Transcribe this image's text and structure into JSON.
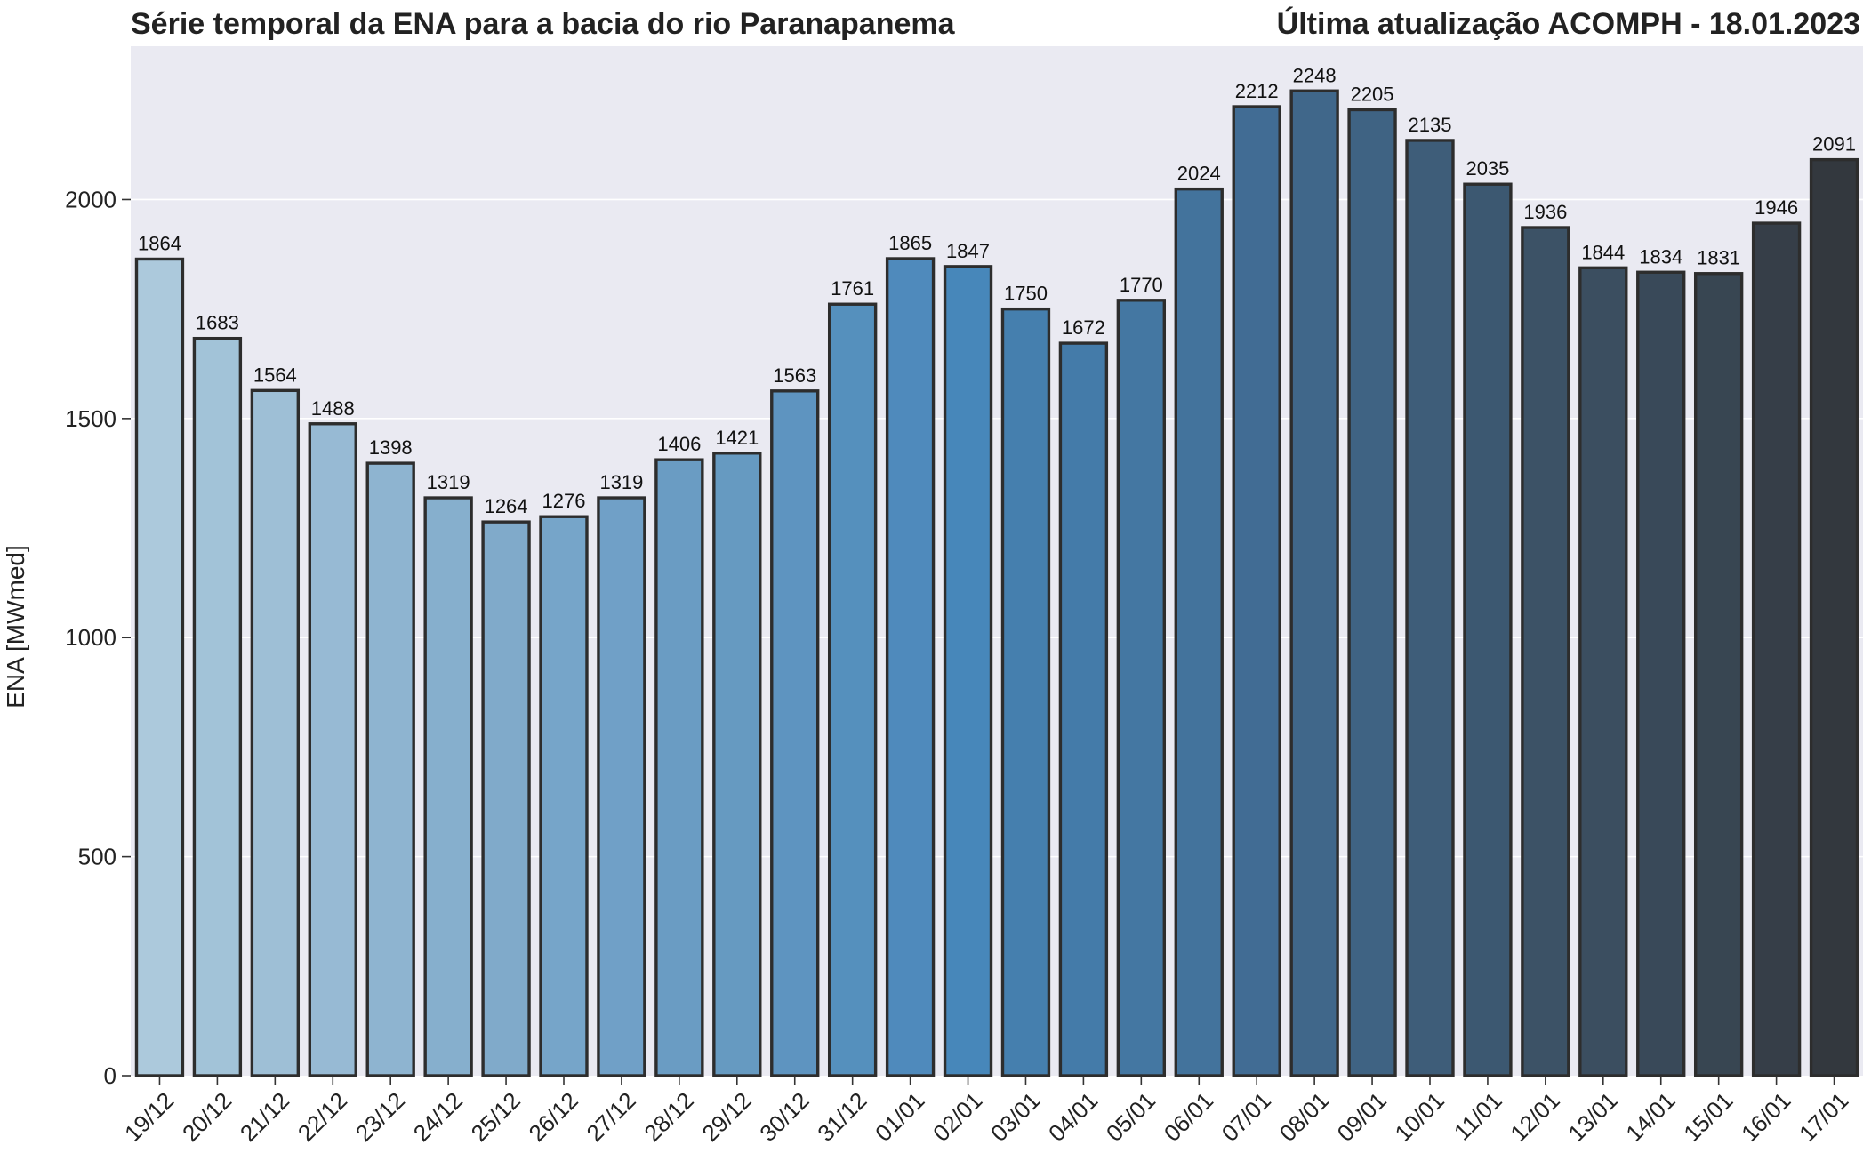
{
  "title_left": "Série temporal da ENA para a bacia do rio Paranapanema",
  "title_right": "Última atualização ACOMPH - 18.01.2023",
  "chart_data": {
    "type": "bar",
    "title": "Série temporal da ENA para a bacia do rio Paranapanema",
    "subtitle": "Última atualização ACOMPH - 18.01.2023",
    "xlabel": "",
    "ylabel": "ENA [MWmed]",
    "ylim": [
      0,
      2350
    ],
    "yticks": [
      0,
      500,
      1000,
      1500,
      2000
    ],
    "grid": "horizontal",
    "categories": [
      "19/12",
      "20/12",
      "21/12",
      "22/12",
      "23/12",
      "24/12",
      "25/12",
      "26/12",
      "27/12",
      "28/12",
      "29/12",
      "30/12",
      "31/12",
      "01/01",
      "02/01",
      "03/01",
      "04/01",
      "05/01",
      "06/01",
      "07/01",
      "08/01",
      "09/01",
      "10/01",
      "11/01",
      "12/01",
      "13/01",
      "14/01",
      "15/01",
      "16/01",
      "17/01"
    ],
    "values": [
      1864,
      1683,
      1564,
      1488,
      1398,
      1319,
      1264,
      1276,
      1319,
      1406,
      1421,
      1563,
      1761,
      1865,
      1847,
      1750,
      1672,
      1770,
      2024,
      2212,
      2248,
      2205,
      2135,
      2035,
      1936,
      1844,
      1834,
      1831,
      1946,
      2091
    ],
    "colors": [
      "#acc9dc",
      "#a2c3d8",
      "#9ebfd6",
      "#97bad4",
      "#8eb4d0",
      "#86afcd",
      "#80aaca",
      "#76a5c9",
      "#70a0c7",
      "#6a9cc3",
      "#669ac1",
      "#5e94c0",
      "#5590bd",
      "#4f8abc",
      "#4787ba",
      "#457fae",
      "#447ba9",
      "#4477a2",
      "#43739c",
      "#416c94",
      "#40678a",
      "#3f6383",
      "#3e5d79",
      "#3c5871",
      "#3c5266",
      "#3b4e60",
      "#394959",
      "#384652",
      "#363e48",
      "#33383e"
    ]
  }
}
